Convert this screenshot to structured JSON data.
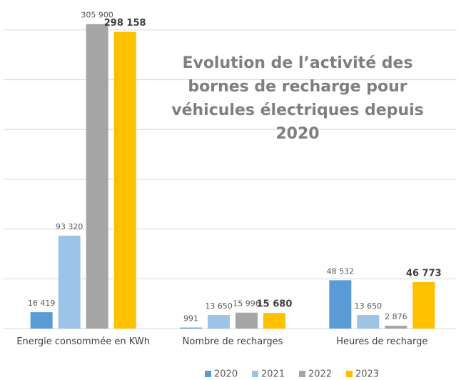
{
  "chart_data": {
    "type": "bar",
    "title": "Evolution de l’activité des bornes de recharge pour véhicules électriques depuis 2020",
    "categories": [
      "Energie consommée en KWh",
      "Nombre de recharges",
      "Heures de recharge"
    ],
    "series": [
      {
        "name": "2020",
        "color": "#5b9bd5",
        "values": [
          16419,
          991,
          48532
        ],
        "value_labels": [
          "16 419",
          "991",
          "48 532"
        ]
      },
      {
        "name": "2021",
        "color": "#9dc3e6",
        "values": [
          93320,
          13650,
          13650
        ],
        "value_labels": [
          "93 320",
          "13 650",
          "13 650"
        ]
      },
      {
        "name": "2022",
        "color": "#a5a5a5",
        "values": [
          305900,
          15996,
          2876
        ],
        "value_labels": [
          "305 900",
          "15 996",
          "2 876"
        ]
      },
      {
        "name": "2023",
        "color": "#ffc000",
        "values": [
          298158,
          15680,
          46773
        ],
        "value_labels": [
          "298 158",
          "15 680",
          "46 773"
        ]
      }
    ],
    "ylim": [
      0,
      310000
    ],
    "yticks": [
      0,
      50000,
      100000,
      150000,
      200000,
      250000,
      300000
    ],
    "grid": true
  }
}
